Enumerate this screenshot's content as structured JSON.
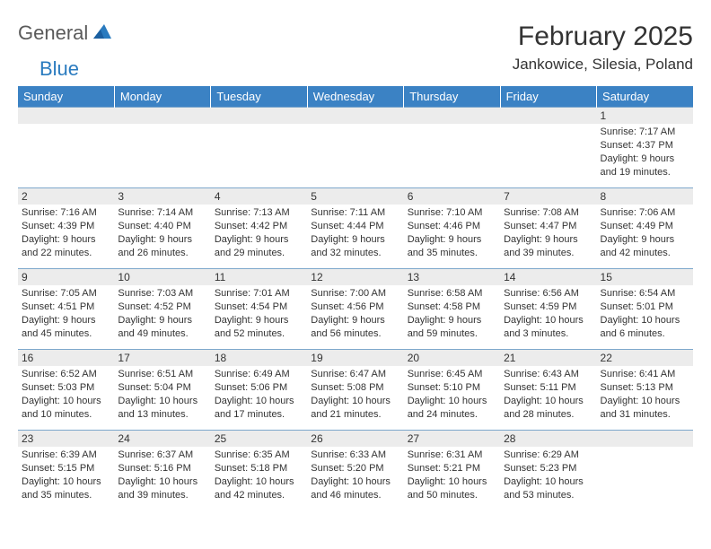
{
  "logo": {
    "text1": "General",
    "text2": "Blue"
  },
  "title": "February 2025",
  "location": "Jankowice, Silesia, Poland",
  "colors": {
    "header_bg": "#3b82c4",
    "header_text": "#ffffff",
    "daynum_bg": "#ececec",
    "row_border": "#7ea8cc",
    "logo_gray": "#5a5a5a",
    "logo_blue": "#2a7bbf"
  },
  "weekdays": [
    "Sunday",
    "Monday",
    "Tuesday",
    "Wednesday",
    "Thursday",
    "Friday",
    "Saturday"
  ],
  "weeks": [
    [
      null,
      null,
      null,
      null,
      null,
      null,
      {
        "d": "1",
        "sr": "7:17 AM",
        "ss": "4:37 PM",
        "dl": "9 hours and 19 minutes."
      }
    ],
    [
      {
        "d": "2",
        "sr": "7:16 AM",
        "ss": "4:39 PM",
        "dl": "9 hours and 22 minutes."
      },
      {
        "d": "3",
        "sr": "7:14 AM",
        "ss": "4:40 PM",
        "dl": "9 hours and 26 minutes."
      },
      {
        "d": "4",
        "sr": "7:13 AM",
        "ss": "4:42 PM",
        "dl": "9 hours and 29 minutes."
      },
      {
        "d": "5",
        "sr": "7:11 AM",
        "ss": "4:44 PM",
        "dl": "9 hours and 32 minutes."
      },
      {
        "d": "6",
        "sr": "7:10 AM",
        "ss": "4:46 PM",
        "dl": "9 hours and 35 minutes."
      },
      {
        "d": "7",
        "sr": "7:08 AM",
        "ss": "4:47 PM",
        "dl": "9 hours and 39 minutes."
      },
      {
        "d": "8",
        "sr": "7:06 AM",
        "ss": "4:49 PM",
        "dl": "9 hours and 42 minutes."
      }
    ],
    [
      {
        "d": "9",
        "sr": "7:05 AM",
        "ss": "4:51 PM",
        "dl": "9 hours and 45 minutes."
      },
      {
        "d": "10",
        "sr": "7:03 AM",
        "ss": "4:52 PM",
        "dl": "9 hours and 49 minutes."
      },
      {
        "d": "11",
        "sr": "7:01 AM",
        "ss": "4:54 PM",
        "dl": "9 hours and 52 minutes."
      },
      {
        "d": "12",
        "sr": "7:00 AM",
        "ss": "4:56 PM",
        "dl": "9 hours and 56 minutes."
      },
      {
        "d": "13",
        "sr": "6:58 AM",
        "ss": "4:58 PM",
        "dl": "9 hours and 59 minutes."
      },
      {
        "d": "14",
        "sr": "6:56 AM",
        "ss": "4:59 PM",
        "dl": "10 hours and 3 minutes."
      },
      {
        "d": "15",
        "sr": "6:54 AM",
        "ss": "5:01 PM",
        "dl": "10 hours and 6 minutes."
      }
    ],
    [
      {
        "d": "16",
        "sr": "6:52 AM",
        "ss": "5:03 PM",
        "dl": "10 hours and 10 minutes."
      },
      {
        "d": "17",
        "sr": "6:51 AM",
        "ss": "5:04 PM",
        "dl": "10 hours and 13 minutes."
      },
      {
        "d": "18",
        "sr": "6:49 AM",
        "ss": "5:06 PM",
        "dl": "10 hours and 17 minutes."
      },
      {
        "d": "19",
        "sr": "6:47 AM",
        "ss": "5:08 PM",
        "dl": "10 hours and 21 minutes."
      },
      {
        "d": "20",
        "sr": "6:45 AM",
        "ss": "5:10 PM",
        "dl": "10 hours and 24 minutes."
      },
      {
        "d": "21",
        "sr": "6:43 AM",
        "ss": "5:11 PM",
        "dl": "10 hours and 28 minutes."
      },
      {
        "d": "22",
        "sr": "6:41 AM",
        "ss": "5:13 PM",
        "dl": "10 hours and 31 minutes."
      }
    ],
    [
      {
        "d": "23",
        "sr": "6:39 AM",
        "ss": "5:15 PM",
        "dl": "10 hours and 35 minutes."
      },
      {
        "d": "24",
        "sr": "6:37 AM",
        "ss": "5:16 PM",
        "dl": "10 hours and 39 minutes."
      },
      {
        "d": "25",
        "sr": "6:35 AM",
        "ss": "5:18 PM",
        "dl": "10 hours and 42 minutes."
      },
      {
        "d": "26",
        "sr": "6:33 AM",
        "ss": "5:20 PM",
        "dl": "10 hours and 46 minutes."
      },
      {
        "d": "27",
        "sr": "6:31 AM",
        "ss": "5:21 PM",
        "dl": "10 hours and 50 minutes."
      },
      {
        "d": "28",
        "sr": "6:29 AM",
        "ss": "5:23 PM",
        "dl": "10 hours and 53 minutes."
      },
      null
    ]
  ],
  "labels": {
    "sunrise": "Sunrise: ",
    "sunset": "Sunset: ",
    "daylight": "Daylight: "
  }
}
